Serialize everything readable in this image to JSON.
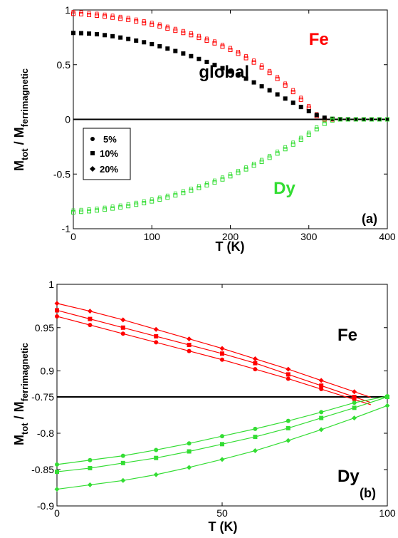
{
  "chart_data": [
    {
      "type": "scatter",
      "panel_label": "(a)",
      "xlabel": "T (K)",
      "ylabel": {
        "main": "M",
        "sub1": "tot",
        "sep": " / M",
        "sub2": "ferrimagnetic"
      },
      "xlim": [
        0,
        400
      ],
      "ylim": [
        -1,
        1
      ],
      "xticks": [
        0,
        100,
        200,
        300,
        400
      ],
      "yticks": [
        -1,
        -0.5,
        0,
        0.5,
        1
      ],
      "xtick_labels": [
        "0",
        "100",
        "200",
        "300",
        "400"
      ],
      "ytick_labels": [
        "-1",
        "-0.5",
        "0",
        "0.5",
        "1"
      ],
      "annotations": [
        {
          "text": "Fe",
          "color": "#ff0000",
          "x": 300,
          "y": 0.68
        },
        {
          "text": "global",
          "color": "#000000",
          "x": 160,
          "y": 0.38
        },
        {
          "text": "Dy",
          "color": "#33dd33",
          "x": 255,
          "y": -0.68
        }
      ],
      "legend": {
        "position": "middle-left",
        "entries": [
          {
            "label": "5%",
            "marker": "circle"
          },
          {
            "label": "10%",
            "marker": "square"
          },
          {
            "label": "20%",
            "marker": "diamond"
          }
        ]
      },
      "zero_line": true,
      "series": [
        {
          "color": "#ff0000",
          "marker": "open-square",
          "group": "Fe",
          "x": [
            0,
            10,
            20,
            30,
            40,
            50,
            60,
            70,
            80,
            90,
            100,
            110,
            120,
            130,
            140,
            150,
            160,
            170,
            180,
            190,
            200,
            210,
            220,
            230,
            240,
            250,
            260,
            270,
            280,
            290,
            300,
            310,
            320,
            330,
            340,
            350,
            360,
            370,
            380,
            390,
            400
          ],
          "y": [
            0.965,
            0.962,
            0.955,
            0.948,
            0.94,
            0.93,
            0.92,
            0.91,
            0.895,
            0.88,
            0.865,
            0.85,
            0.83,
            0.81,
            0.79,
            0.77,
            0.745,
            0.72,
            0.695,
            0.665,
            0.635,
            0.6,
            0.56,
            0.52,
            0.475,
            0.425,
            0.37,
            0.31,
            0.25,
            0.18,
            0.105,
            0.03,
            0.0,
            0.0,
            0.0,
            0.0,
            0.0,
            0.0,
            0.0,
            0.0,
            0.0
          ]
        },
        {
          "color": "#000000",
          "marker": "filled-square",
          "group": "global",
          "x": [
            0,
            10,
            20,
            30,
            40,
            50,
            60,
            70,
            80,
            90,
            100,
            110,
            120,
            130,
            140,
            150,
            160,
            170,
            180,
            190,
            200,
            210,
            220,
            230,
            240,
            250,
            260,
            270,
            280,
            290,
            300,
            310,
            320,
            330,
            340,
            350,
            360,
            370,
            380,
            390,
            400
          ],
          "y": [
            0.79,
            0.788,
            0.784,
            0.778,
            0.77,
            0.76,
            0.748,
            0.735,
            0.72,
            0.705,
            0.688,
            0.668,
            0.647,
            0.625,
            0.602,
            0.578,
            0.552,
            0.525,
            0.497,
            0.468,
            0.437,
            0.405,
            0.372,
            0.338,
            0.302,
            0.266,
            0.228,
            0.19,
            0.152,
            0.113,
            0.075,
            0.04,
            0.015,
            0.005,
            0.002,
            0.001,
            0.0,
            0.0,
            0.0,
            0.0,
            0.0
          ]
        },
        {
          "color": "#33dd33",
          "marker": "open-square",
          "group": "Dy",
          "x": [
            0,
            10,
            20,
            30,
            40,
            50,
            60,
            70,
            80,
            90,
            100,
            110,
            120,
            130,
            140,
            150,
            160,
            170,
            180,
            190,
            200,
            210,
            220,
            230,
            240,
            250,
            260,
            270,
            280,
            290,
            300,
            310,
            320,
            330,
            340,
            350,
            360,
            370,
            380,
            390,
            400
          ],
          "y": [
            -0.85,
            -0.845,
            -0.84,
            -0.833,
            -0.825,
            -0.815,
            -0.805,
            -0.793,
            -0.78,
            -0.766,
            -0.75,
            -0.733,
            -0.715,
            -0.695,
            -0.674,
            -0.652,
            -0.628,
            -0.603,
            -0.577,
            -0.549,
            -0.52,
            -0.489,
            -0.457,
            -0.423,
            -0.388,
            -0.351,
            -0.312,
            -0.272,
            -0.23,
            -0.186,
            -0.14,
            -0.09,
            -0.04,
            -0.01,
            0.0,
            0.0,
            0.0,
            0.0,
            0.0,
            0.0,
            0.0
          ]
        }
      ]
    },
    {
      "type": "line",
      "panel_label": "(b)",
      "xlabel": "T (K)",
      "ylabel": {
        "main": "M",
        "sub1": "tot",
        "sep": " / M",
        "sub2": "ferrimagnetic"
      },
      "xlim": [
        0,
        100
      ],
      "xticks": [
        0,
        50,
        100
      ],
      "xtick_labels": [
        "0",
        "50",
        "100"
      ],
      "top": {
        "label": "Fe",
        "ylim": [
          0.87,
          1.0
        ],
        "yticks": [
          0.9,
          0.95,
          1
        ],
        "ytick_labels": [
          "0.9",
          "0.95",
          "1"
        ],
        "color": "#ff0000",
        "series": [
          {
            "concentration": "20%",
            "marker": "diamond",
            "x": [
              0,
              10,
              20,
              30,
              40,
              50,
              60,
              70,
              80,
              90
            ],
            "y": [
              0.978,
              0.969,
              0.959,
              0.948,
              0.937,
              0.926,
              0.914,
              0.902,
              0.889,
              0.876
            ]
          },
          {
            "concentration": "10%",
            "marker": "square",
            "x": [
              0,
              10,
              20,
              30,
              40,
              50,
              60,
              70,
              80,
              90
            ],
            "y": [
              0.97,
              0.96,
              0.95,
              0.94,
              0.93,
              0.92,
              0.909,
              0.896,
              0.883,
              0.87
            ]
          },
          {
            "concentration": "5%",
            "marker": "circle",
            "x": [
              0,
              10,
              20,
              30,
              40,
              50,
              60,
              70,
              80,
              90
            ],
            "y": [
              0.963,
              0.953,
              0.943,
              0.933,
              0.923,
              0.913,
              0.902,
              0.891,
              0.879,
              0.867
            ]
          }
        ]
      },
      "bottom": {
        "label": "Dy",
        "ylim": [
          -0.9,
          -0.75
        ],
        "yticks": [
          -0.9,
          -0.85,
          -0.8,
          -0.75
        ],
        "ytick_labels": [
          "-0.9",
          "-0.85",
          "-0.8",
          "-0.75"
        ],
        "color": "#33dd33",
        "series": [
          {
            "concentration": "5%",
            "marker": "circle",
            "x": [
              0,
              10,
              20,
              30,
              40,
              50,
              60,
              70,
              80,
              90,
              100
            ],
            "y": [
              -0.843,
              -0.837,
              -0.831,
              -0.823,
              -0.814,
              -0.804,
              -0.794,
              -0.783,
              -0.771,
              -0.758,
              -0.749
            ]
          },
          {
            "concentration": "10%",
            "marker": "square",
            "x": [
              0,
              10,
              20,
              30,
              40,
              50,
              60,
              70,
              80,
              90,
              100
            ],
            "y": [
              -0.853,
              -0.848,
              -0.841,
              -0.834,
              -0.825,
              -0.815,
              -0.805,
              -0.793,
              -0.779,
              -0.765,
              -0.75
            ]
          },
          {
            "concentration": "20%",
            "marker": "diamond",
            "x": [
              0,
              10,
              20,
              30,
              40,
              50,
              60,
              70,
              80,
              90,
              100
            ],
            "y": [
              -0.877,
              -0.871,
              -0.865,
              -0.857,
              -0.847,
              -0.836,
              -0.824,
              -0.81,
              -0.795,
              -0.779,
              -0.762
            ]
          }
        ]
      }
    }
  ]
}
